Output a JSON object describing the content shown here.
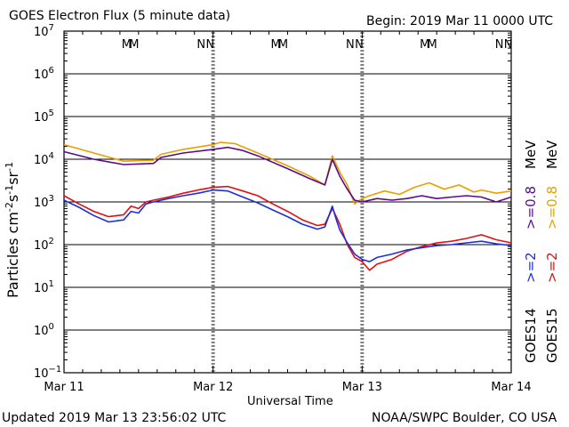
{
  "header": {
    "title": "GOES Electron Flux (5 minute data)",
    "begin": "Begin: 2019 Mar 11 0000 UTC"
  },
  "footer": {
    "updated": "Updated 2019 Mar 13 23:56:02 UTC",
    "credit": "NOAA/SWPC Boulder, CO USA"
  },
  "axes": {
    "ylabel_base": "Particles cm",
    "ylabel_sup1": "-2",
    "ylabel_mid1": "s",
    "ylabel_sup2": "-1",
    "ylabel_mid2": "sr",
    "ylabel_sup3": "-1",
    "xlabel": "Universal Time"
  },
  "colors": {
    "goes14_2mev": "#1f2fd6",
    "goes15_2mev": "#e01010",
    "goes14_08mev": "#5a0a8a",
    "goes15_08mev": "#e8a000"
  },
  "markers": [
    {
      "text": "M",
      "color": "#1f2fd6",
      "day": 0.42
    },
    {
      "text": "M",
      "color": "#e01010",
      "day": 0.47
    },
    {
      "text": "N",
      "color": "#1f2fd6",
      "day": 0.92
    },
    {
      "text": "N",
      "color": "#e01010",
      "day": 0.98
    },
    {
      "text": "M",
      "color": "#1f2fd6",
      "day": 1.42
    },
    {
      "text": "M",
      "color": "#e01010",
      "day": 1.47
    },
    {
      "text": "N",
      "color": "#1f2fd6",
      "day": 1.92
    },
    {
      "text": "N",
      "color": "#e01010",
      "day": 1.98
    },
    {
      "text": "M",
      "color": "#1f2fd6",
      "day": 2.42
    },
    {
      "text": "M",
      "color": "#e01010",
      "day": 2.47
    },
    {
      "text": "N",
      "color": "#1f2fd6",
      "day": 2.92
    },
    {
      "text": "N",
      "color": "#e01010",
      "day": 2.98
    }
  ],
  "legend": {
    "goes14": "GOES14",
    "goes15": "GOES15",
    "g14_2": ">=2",
    "g15_2": ">=2",
    "g14_08": ">=0.8",
    "g15_08": ">=0.8",
    "unit": "MeV"
  },
  "chart_data": {
    "type": "line",
    "title": "GOES Electron Flux (5 minute data)",
    "xlabel": "Universal Time",
    "ylabel": "Particles cm-2 s-1 sr-1",
    "y_scale": "log",
    "ylim": [
      0.1,
      10000000
    ],
    "x_tick_labels": [
      "Mar 11",
      "Mar 12",
      "Mar 13",
      "Mar 14"
    ],
    "y_tick_exponents": [
      -1,
      0,
      1,
      2,
      3,
      4,
      5,
      6,
      7
    ],
    "threshold_line": 1000,
    "x_units": "days since 2019 Mar 11 0000 UTC",
    "series": [
      {
        "name": "GOES15 >=0.8 MeV",
        "color": "#e8a000",
        "points": [
          [
            0,
            22000
          ],
          [
            0.2,
            14000
          ],
          [
            0.4,
            9000
          ],
          [
            0.6,
            9500
          ],
          [
            0.65,
            13000
          ],
          [
            0.8,
            17000
          ],
          [
            1.0,
            22000
          ],
          [
            1.05,
            25000
          ],
          [
            1.15,
            23000
          ],
          [
            1.3,
            14000
          ],
          [
            1.5,
            7000
          ],
          [
            1.65,
            4000
          ],
          [
            1.75,
            2500
          ],
          [
            1.8,
            12000
          ],
          [
            1.85,
            5000
          ],
          [
            1.9,
            2500
          ],
          [
            1.95,
            900
          ],
          [
            2.0,
            1200
          ],
          [
            2.05,
            1400
          ],
          [
            2.15,
            1800
          ],
          [
            2.25,
            1500
          ],
          [
            2.35,
            2200
          ],
          [
            2.45,
            2800
          ],
          [
            2.55,
            2000
          ],
          [
            2.65,
            2500
          ],
          [
            2.75,
            1700
          ],
          [
            2.8,
            1900
          ],
          [
            2.9,
            1600
          ],
          [
            3.0,
            1800
          ],
          [
            3.1,
            1500
          ],
          [
            3.25,
            2400
          ],
          [
            3.35,
            1800
          ],
          [
            3.45,
            2500
          ],
          [
            3.55,
            3200
          ],
          [
            3.7,
            3500
          ],
          [
            3.8,
            4200
          ],
          [
            3.9,
            5000
          ],
          [
            4.0,
            4700
          ],
          [
            4.05,
            4200
          ],
          [
            4.1,
            3600
          ]
        ]
      },
      {
        "name": "GOES14 >=0.8 MeV",
        "color": "#5a0a8a",
        "points": [
          [
            0,
            15000
          ],
          [
            0.2,
            10000
          ],
          [
            0.4,
            7500
          ],
          [
            0.6,
            8000
          ],
          [
            0.65,
            11000
          ],
          [
            0.8,
            14000
          ],
          [
            1.0,
            17000
          ],
          [
            1.1,
            19000
          ],
          [
            1.2,
            16000
          ],
          [
            1.3,
            12000
          ],
          [
            1.5,
            6000
          ],
          [
            1.65,
            3500
          ],
          [
            1.75,
            2500
          ],
          [
            1.8,
            10000
          ],
          [
            1.85,
            4000
          ],
          [
            1.9,
            2000
          ],
          [
            1.95,
            1100
          ],
          [
            2.0,
            1000
          ],
          [
            2.1,
            1200
          ],
          [
            2.2,
            1100
          ],
          [
            2.3,
            1200
          ],
          [
            2.4,
            1400
          ],
          [
            2.5,
            1200
          ],
          [
            2.6,
            1300
          ],
          [
            2.7,
            1400
          ],
          [
            2.8,
            1300
          ],
          [
            2.9,
            1000
          ],
          [
            3.0,
            1300
          ],
          [
            3.1,
            1100
          ],
          [
            3.25,
            1500
          ],
          [
            3.35,
            1700
          ],
          [
            3.45,
            1800
          ],
          [
            3.55,
            2100
          ],
          [
            3.65,
            2500
          ],
          [
            3.75,
            3000
          ],
          [
            3.85,
            3600
          ],
          [
            3.95,
            4000
          ],
          [
            4.05,
            3300
          ],
          [
            4.1,
            2600
          ]
        ]
      },
      {
        "name": "GOES15 >=2 MeV",
        "color": "#e01010",
        "points": [
          [
            0,
            1400
          ],
          [
            0.1,
            900
          ],
          [
            0.2,
            600
          ],
          [
            0.3,
            450
          ],
          [
            0.4,
            500
          ],
          [
            0.45,
            800
          ],
          [
            0.5,
            700
          ],
          [
            0.55,
            1000
          ],
          [
            0.6,
            1100
          ],
          [
            0.7,
            1300
          ],
          [
            0.8,
            1600
          ],
          [
            0.9,
            1900
          ],
          [
            1.0,
            2200
          ],
          [
            1.1,
            2300
          ],
          [
            1.2,
            1800
          ],
          [
            1.3,
            1400
          ],
          [
            1.4,
            900
          ],
          [
            1.5,
            600
          ],
          [
            1.6,
            380
          ],
          [
            1.7,
            280
          ],
          [
            1.75,
            300
          ],
          [
            1.8,
            700
          ],
          [
            1.82,
            500
          ],
          [
            1.85,
            300
          ],
          [
            1.9,
            100
          ],
          [
            1.95,
            50
          ],
          [
            2.0,
            40
          ],
          [
            2.05,
            25
          ],
          [
            2.1,
            35
          ],
          [
            2.2,
            45
          ],
          [
            2.3,
            70
          ],
          [
            2.4,
            90
          ],
          [
            2.5,
            110
          ],
          [
            2.6,
            120
          ],
          [
            2.7,
            140
          ],
          [
            2.8,
            170
          ],
          [
            2.9,
            130
          ],
          [
            3.0,
            110
          ],
          [
            3.1,
            95
          ],
          [
            3.2,
            80
          ],
          [
            3.3,
            70
          ],
          [
            3.4,
            80
          ],
          [
            3.5,
            95
          ],
          [
            3.6,
            120
          ],
          [
            3.7,
            160
          ],
          [
            3.8,
            230
          ],
          [
            3.9,
            350
          ],
          [
            3.95,
            450
          ],
          [
            4.0,
            380
          ],
          [
            4.05,
            280
          ],
          [
            4.1,
            200
          ]
        ]
      },
      {
        "name": "GOES14 >=2 MeV",
        "color": "#1f2fd6",
        "points": [
          [
            0,
            1100
          ],
          [
            0.1,
            750
          ],
          [
            0.2,
            480
          ],
          [
            0.3,
            340
          ],
          [
            0.4,
            380
          ],
          [
            0.45,
            600
          ],
          [
            0.5,
            550
          ],
          [
            0.55,
            900
          ],
          [
            0.6,
            1000
          ],
          [
            0.7,
            1200
          ],
          [
            0.8,
            1400
          ],
          [
            0.9,
            1600
          ],
          [
            1.0,
            1900
          ],
          [
            1.1,
            1800
          ],
          [
            1.2,
            1300
          ],
          [
            1.3,
            950
          ],
          [
            1.4,
            650
          ],
          [
            1.5,
            450
          ],
          [
            1.6,
            300
          ],
          [
            1.7,
            230
          ],
          [
            1.75,
            260
          ],
          [
            1.8,
            800
          ],
          [
            1.82,
            450
          ],
          [
            1.85,
            220
          ],
          [
            1.9,
            110
          ],
          [
            1.95,
            60
          ],
          [
            2.0,
            45
          ],
          [
            2.05,
            40
          ],
          [
            2.1,
            50
          ],
          [
            2.2,
            60
          ],
          [
            2.3,
            75
          ],
          [
            2.4,
            85
          ],
          [
            2.5,
            95
          ],
          [
            2.6,
            100
          ],
          [
            2.7,
            110
          ],
          [
            2.8,
            120
          ],
          [
            2.9,
            105
          ],
          [
            3.0,
            95
          ],
          [
            3.1,
            85
          ],
          [
            3.2,
            70
          ],
          [
            3.3,
            60
          ],
          [
            3.4,
            70
          ],
          [
            3.5,
            85
          ],
          [
            3.6,
            110
          ],
          [
            3.7,
            150
          ],
          [
            3.8,
            210
          ],
          [
            3.9,
            290
          ],
          [
            3.95,
            320
          ],
          [
            4.0,
            260
          ],
          [
            4.05,
            190
          ],
          [
            4.1,
            140
          ]
        ]
      }
    ]
  }
}
